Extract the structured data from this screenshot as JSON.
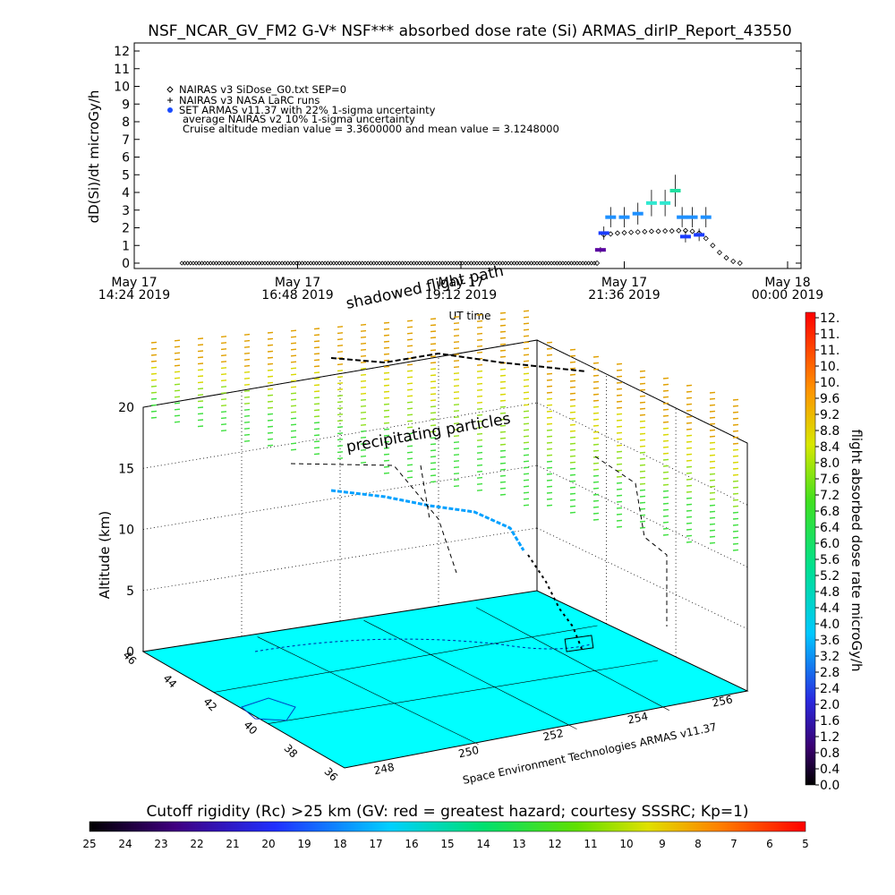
{
  "page": {
    "title": "NSF_NCAR_GV_FM2 G-V* NSF*** absorbed dose rate (Si) ARMAS_dirIP_Report_43550",
    "footer_credit": "Space Environment Technologies ARMAS v11.37"
  },
  "chart_data": [
    {
      "type": "scatter",
      "id": "time-series",
      "ylabel": "dD(Si)/dt microGy/h",
      "xlabel": "UT time",
      "ylim": [
        0,
        12
      ],
      "yticks": [
        "0",
        "1",
        "2",
        "3",
        "4",
        "5",
        "6",
        "7",
        "8",
        "9",
        "10",
        "11",
        "12"
      ],
      "xticks": [
        {
          "line1": "May 17",
          "line2": "14:24 2019"
        },
        {
          "line1": "May 17",
          "line2": "16:48 2019"
        },
        {
          "line1": "May 17",
          "line2": "19:12 2019"
        },
        {
          "line1": "May 17",
          "line2": "21:36 2019"
        },
        {
          "line1": "May 18",
          "line2": "00:00 2019"
        }
      ],
      "legend": {
        "placement": "top-left",
        "entries": [
          "NAIRAS v3 SiDose_G0.txt SEP=0",
          "NAIRAS v3 NASA LaRC runs",
          "SET ARMAS v11.37 with 22% 1-sigma uncertainty",
          "average NAIRAS v2 10% 1-sigma uncertainty",
          "Cruise altitude median value = 3.3600000 and mean value = 3.1248000"
        ]
      },
      "series": [
        {
          "name": "NAIRAS v3 SiDose_G0.txt SEP=0",
          "marker": "diamond",
          "x_hours_utc": [
            15.1,
            21.2,
            21.3,
            21.4,
            21.5,
            21.6,
            21.7,
            21.8,
            21.9,
            22.0,
            22.1,
            22.2,
            22.3,
            22.4,
            22.5,
            22.6,
            22.7,
            22.8,
            22.9,
            23.0,
            23.1,
            23.2,
            23.3
          ],
          "y": [
            0.0,
            0.0,
            1.6,
            1.65,
            1.7,
            1.72,
            1.74,
            1.76,
            1.78,
            1.8,
            1.8,
            1.82,
            1.82,
            1.84,
            1.84,
            1.8,
            1.7,
            1.4,
            1.0,
            0.6,
            0.3,
            0.1,
            0.0
          ]
        },
        {
          "name": "SET ARMAS v11.37 with 22% 1-sigma uncertainty",
          "marker": "circle",
          "x_hours_utc": [
            21.25,
            21.3,
            21.4,
            21.6,
            21.8,
            22.0,
            22.2,
            22.35,
            22.45,
            22.5,
            22.6,
            22.7,
            22.8
          ],
          "y": [
            0.75,
            1.7,
            2.6,
            2.6,
            2.8,
            3.4,
            3.4,
            4.1,
            2.6,
            1.5,
            2.6,
            1.6,
            2.6
          ]
        }
      ]
    },
    {
      "type": "scatter",
      "id": "flight-3d",
      "zlabel": "Altitude (km)",
      "zticks": [
        "0",
        "5",
        "10",
        "15",
        "20"
      ],
      "lat_ticks": [
        "46",
        "44",
        "42",
        "40",
        "38",
        "36"
      ],
      "lon_ticks": [
        "248",
        "250",
        "252",
        "254",
        "256"
      ],
      "annotations": [
        "shadowed flight path",
        "precipitating particles"
      ],
      "colorbar": {
        "label": "flight absorbed dose rate microGy/h",
        "ticks": [
          "12.",
          "11.",
          "11.",
          "10.",
          "10.",
          "9.6",
          "9.2",
          "8.8",
          "8.4",
          "8.0",
          "7.6",
          "7.2",
          "6.8",
          "6.4",
          "6.0",
          "5.6",
          "5.2",
          "4.8",
          "4.4",
          "4.0",
          "3.6",
          "3.2",
          "2.8",
          "2.4",
          "2.0",
          "1.6",
          "1.2",
          "0.8",
          "0.4",
          "0.0"
        ]
      }
    },
    {
      "type": "heatmap",
      "id": "cutoff-rigidity-bar",
      "title": "Cutoff rigidity (Rc) >25 km (GV: red = greatest hazard; courtesy SSSRC; Kp=1)",
      "ticks": [
        "25",
        "24",
        "23",
        "22",
        "21",
        "20",
        "19",
        "18",
        "17",
        "16",
        "15",
        "14",
        "13",
        "12",
        "11",
        "10",
        "9",
        "8",
        "7",
        "6",
        "5"
      ]
    }
  ]
}
